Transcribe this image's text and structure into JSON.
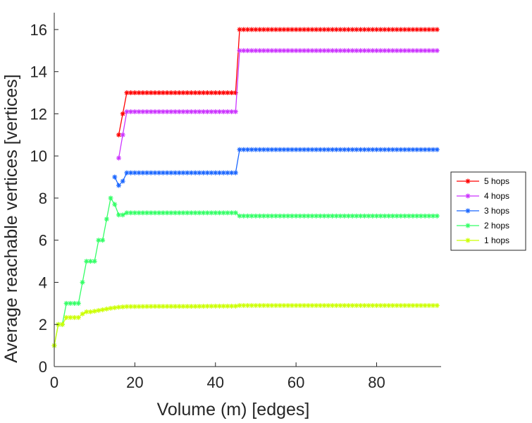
{
  "chart_data": {
    "type": "line",
    "title": "",
    "xlabel": "Volume (m) [edges]",
    "ylabel": "Average reachable vertices [vertices]",
    "xlim": [
      0,
      96
    ],
    "ylim": [
      0,
      16.8
    ],
    "xticks": [
      0,
      20,
      40,
      60,
      80
    ],
    "yticks": [
      0,
      2,
      4,
      6,
      8,
      10,
      12,
      14,
      16
    ],
    "grid": false,
    "legend_position": "right",
    "series": [
      {
        "name": "5 hops",
        "color": "#ff0000",
        "x": [
          16,
          17,
          18,
          20,
          25,
          30,
          35,
          40,
          45,
          46,
          50,
          55,
          60,
          65,
          70,
          75,
          80,
          85,
          90,
          95
        ],
        "y": [
          11,
          12,
          13,
          13,
          13,
          13,
          13,
          13,
          13,
          16,
          16,
          16,
          16,
          16,
          16,
          16,
          16,
          16,
          16,
          16
        ]
      },
      {
        "name": "4 hops",
        "color": "#cc33ff",
        "x": [
          16,
          17,
          18,
          20,
          25,
          30,
          35,
          40,
          45,
          46,
          50,
          55,
          60,
          65,
          70,
          75,
          80,
          85,
          90,
          95
        ],
        "y": [
          9.9,
          11,
          12.1,
          12.1,
          12.1,
          12.1,
          12.1,
          12.1,
          12.1,
          15,
          15,
          15,
          15,
          15,
          15,
          15,
          15,
          15,
          15,
          15
        ]
      },
      {
        "name": "3 hops",
        "color": "#1a66ff",
        "x": [
          15,
          16,
          17,
          18,
          20,
          25,
          30,
          35,
          40,
          45,
          46,
          50,
          55,
          60,
          65,
          70,
          75,
          80,
          85,
          90,
          95
        ],
        "y": [
          9,
          8.6,
          8.8,
          9.2,
          9.2,
          9.2,
          9.2,
          9.2,
          9.2,
          9.2,
          10.3,
          10.3,
          10.3,
          10.3,
          10.3,
          10.3,
          10.3,
          10.3,
          10.3,
          10.3,
          10.3
        ]
      },
      {
        "name": "2 hops",
        "color": "#33ff66",
        "x": [
          0,
          1,
          2,
          3,
          4,
          5,
          6,
          7,
          8,
          9,
          10,
          11,
          12,
          13,
          14,
          15,
          16,
          17,
          18,
          20,
          25,
          30,
          35,
          40,
          45,
          46,
          50,
          55,
          60,
          65,
          70,
          75,
          80,
          85,
          90,
          95
        ],
        "y": [
          1,
          2,
          2,
          3,
          3,
          3,
          3,
          4,
          5,
          5,
          5,
          6,
          6,
          7,
          8,
          7.7,
          7.2,
          7.2,
          7.3,
          7.3,
          7.3,
          7.3,
          7.3,
          7.3,
          7.3,
          7.15,
          7.15,
          7.15,
          7.15,
          7.15,
          7.15,
          7.15,
          7.15,
          7.15,
          7.15,
          7.15
        ]
      },
      {
        "name": "1 hops",
        "color": "#ccff00",
        "x": [
          0,
          1,
          2,
          3,
          4,
          5,
          6,
          7,
          8,
          9,
          10,
          12,
          14,
          16,
          18,
          20,
          25,
          30,
          35,
          40,
          45,
          46,
          50,
          55,
          60,
          65,
          70,
          75,
          80,
          85,
          90,
          95
        ],
        "y": [
          1,
          2,
          2,
          2.33,
          2.33,
          2.33,
          2.33,
          2.5,
          2.6,
          2.6,
          2.63,
          2.7,
          2.77,
          2.82,
          2.85,
          2.85,
          2.86,
          2.86,
          2.86,
          2.87,
          2.87,
          2.9,
          2.9,
          2.9,
          2.9,
          2.9,
          2.9,
          2.9,
          2.9,
          2.9,
          2.9,
          2.9
        ]
      }
    ]
  }
}
